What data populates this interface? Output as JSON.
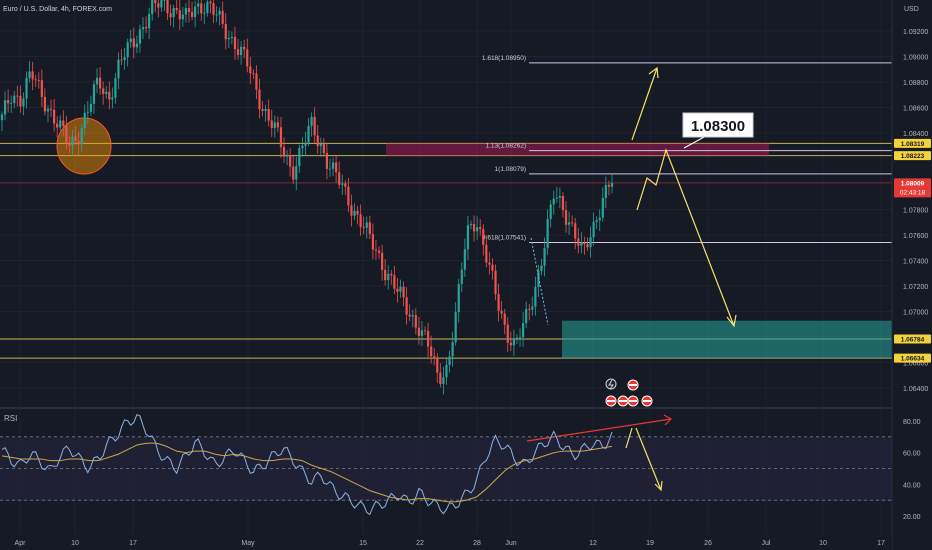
{
  "header": {
    "symbol_label": "Euro / U.S. Dollar, 4h, FOREX.com"
  },
  "colors": {
    "background": "#161a25",
    "up": "#26a69a",
    "down": "#ef5350",
    "fib_line": "#d1c4e9",
    "arrow": "#f5e16a",
    "rsi_line": "#8ab4e8",
    "rsi_ma": "#c9a94b",
    "divergence": "#e53935"
  },
  "chart_data": [
    {
      "type": "candlestick",
      "name": "price",
      "currency_label": "USD",
      "ylim": [
        1.063,
        1.094
      ],
      "y_ticks": [
        "1.09200",
        "1.09000",
        "1.08800",
        "1.08600",
        "1.08400",
        "1.07800",
        "1.07600",
        "1.07400",
        "1.07200",
        "1.07000",
        "1.06600",
        "1.06400"
      ],
      "x_ticks": [
        "Apr",
        "10",
        "17",
        "May",
        "15",
        "22",
        "28",
        "Jun",
        "12",
        "19",
        "26",
        "Jul",
        "10",
        "17"
      ],
      "price_badges": [
        {
          "value": "1.08319",
          "style": "yellow"
        },
        {
          "value": "1.08223",
          "style": "yellow"
        },
        {
          "value": "1.08009",
          "style": "red",
          "countdown": "02:43:18"
        },
        {
          "value": "1.06784",
          "style": "yellow"
        },
        {
          "value": "1.06634",
          "style": "yellow"
        }
      ],
      "fib_levels": [
        {
          "label": "1.618(1.08950)",
          "value": 1.0895
        },
        {
          "label": "1.13(1.08262)",
          "value": 1.08262
        },
        {
          "label": "1(1.08079)",
          "value": 1.08079
        },
        {
          "label": "0.618(1.07541)",
          "value": 1.07541
        }
      ],
      "horizontal_levels": [
        1.08319,
        1.08223,
        1.08009,
        1.06784,
        1.06634
      ],
      "resistance_zone": {
        "from": 1.0822,
        "to": 1.0832
      },
      "support_zone": {
        "from": 1.06634,
        "to": 1.06928
      },
      "callout": "1.08300",
      "close_path": [
        1.085,
        1.0871,
        1.0868,
        1.0885,
        1.0872,
        1.0858,
        1.0842,
        1.083,
        1.0842,
        1.086,
        1.088,
        1.0868,
        1.089,
        1.0905,
        1.0918,
        1.093,
        1.094,
        1.0942,
        1.0935,
        1.0928,
        1.094,
        1.0942,
        1.0932,
        1.0922,
        1.0912,
        1.0898,
        1.088,
        1.086,
        1.0845,
        1.0826,
        1.0812,
        1.0828,
        1.0845,
        1.083,
        1.0812,
        1.0798,
        1.0785,
        1.0772,
        1.0755,
        1.0742,
        1.0728,
        1.0712,
        1.07,
        1.069,
        1.0672,
        1.0648,
        1.0658,
        1.0702,
        1.0762,
        1.0775,
        1.0742,
        1.0712,
        1.0688,
        1.0672,
        1.069,
        1.0718,
        1.0752,
        1.079,
        1.0782,
        1.0765,
        1.0742,
        1.0765,
        1.079,
        1.0801
      ]
    },
    {
      "type": "line",
      "name": "RSI",
      "label": "RSI",
      "ylim": [
        15,
        90
      ],
      "y_ticks": [
        "80.00",
        "60.00",
        "40.00",
        "20.00"
      ],
      "bands": [
        70,
        50,
        30
      ],
      "path": [
        62,
        55,
        52,
        60,
        54,
        48,
        58,
        63,
        56,
        50,
        57,
        66,
        72,
        80,
        82,
        74,
        62,
        55,
        50,
        58,
        67,
        60,
        52,
        57,
        62,
        55,
        48,
        52,
        58,
        63,
        56,
        48,
        42,
        46,
        38,
        33,
        30,
        26,
        24,
        27,
        30,
        34,
        28,
        35,
        30,
        26,
        24,
        28,
        34,
        42,
        58,
        68,
        64,
        56,
        52,
        60,
        66,
        70,
        64,
        58,
        62,
        66,
        64,
        70
      ],
      "ma_path": [
        58,
        57,
        56,
        56,
        56,
        55,
        55,
        56,
        56,
        55,
        55,
        57,
        59,
        62,
        65,
        66,
        66,
        64,
        61,
        60,
        61,
        61,
        59,
        58,
        59,
        58,
        56,
        55,
        55,
        56,
        56,
        55,
        52,
        50,
        48,
        45,
        42,
        39,
        36,
        34,
        32,
        31,
        30,
        31,
        31,
        30,
        29,
        29,
        30,
        32,
        37,
        43,
        49,
        53,
        55,
        56,
        58,
        60,
        61,
        61,
        61,
        62,
        63,
        64
      ]
    }
  ]
}
